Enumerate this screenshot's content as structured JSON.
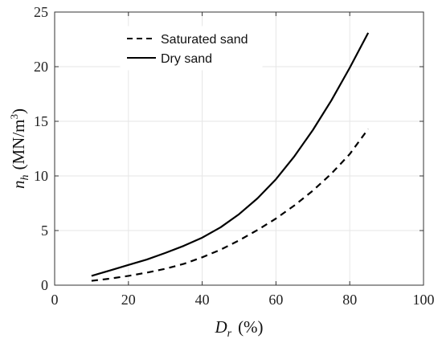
{
  "chart_data": {
    "type": "line",
    "xlabel": "D",
    "xlabel_sub": "r",
    "xlabel_unit": "(%)",
    "ylabel": "n",
    "ylabel_sub": "h",
    "ylabel_unit": "(MN/m",
    "ylabel_unit_sup": "3",
    "ylabel_unit_close": ")",
    "xlim": [
      0,
      100
    ],
    "ylim": [
      0,
      25
    ],
    "xticks": [
      "0",
      "20",
      "40",
      "60",
      "80",
      "100"
    ],
    "yticks": [
      "0",
      "5",
      "10",
      "15",
      "20",
      "25"
    ],
    "grid": true,
    "legend_position": "top-left",
    "series": [
      {
        "name": "Saturated sand",
        "style": "dashed",
        "color": "#000000",
        "x": [
          10,
          15,
          20,
          25,
          30,
          35,
          40,
          45,
          50,
          55,
          60,
          65,
          70,
          75,
          80,
          85
        ],
        "y": [
          0.4,
          0.6,
          0.85,
          1.15,
          1.5,
          1.95,
          2.55,
          3.25,
          4.1,
          5.05,
          6.1,
          7.3,
          8.65,
          10.2,
          12.0,
          14.3
        ]
      },
      {
        "name": "Dry sand",
        "style": "solid",
        "color": "#000000",
        "x": [
          10,
          15,
          20,
          25,
          30,
          35,
          40,
          45,
          50,
          55,
          60,
          65,
          70,
          75,
          80,
          85
        ],
        "y": [
          0.85,
          1.35,
          1.85,
          2.35,
          2.95,
          3.6,
          4.35,
          5.3,
          6.5,
          7.95,
          9.7,
          11.8,
          14.2,
          16.9,
          19.9,
          23.1
        ]
      }
    ]
  }
}
